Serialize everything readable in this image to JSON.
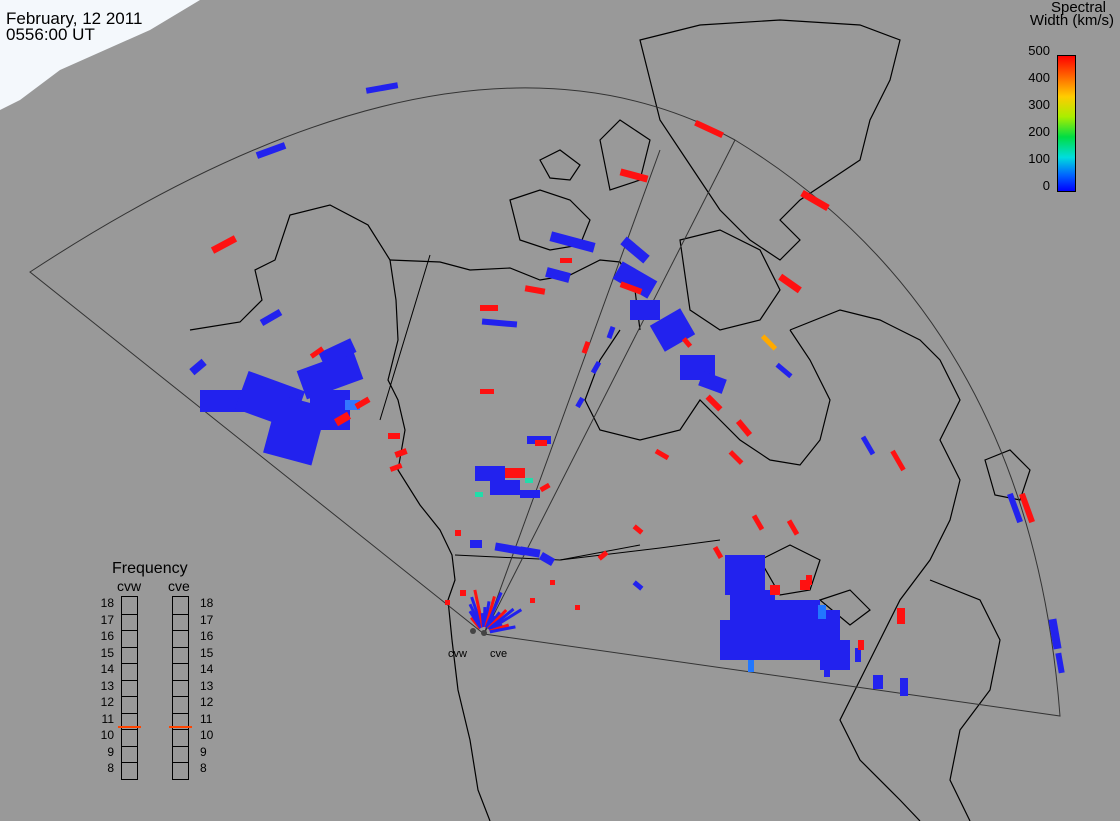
{
  "header": {
    "date": "February, 12 2011",
    "time": "0556:00 UT"
  },
  "colorbar": {
    "title_line1": "Spectral",
    "title_line2": "Width (km/s)",
    "ticks": [
      "500",
      "400",
      "300",
      "200",
      "100",
      "0"
    ],
    "colors": [
      "#ff0000",
      "#ff8800",
      "#ffff00",
      "#00ff00",
      "#00ffff",
      "#0044ff"
    ]
  },
  "frequency": {
    "title": "Frequency",
    "stations": [
      "cvw",
      "cve"
    ],
    "labels": [
      "18",
      "17",
      "16",
      "15",
      "14",
      "13",
      "12",
      "11",
      "10",
      "9",
      "8"
    ],
    "cvw_value": 10.7,
    "cve_value": 10.7,
    "marker_color": "#ff4400"
  },
  "radars": {
    "west": "cvw",
    "east": "cve"
  },
  "colors": {
    "background": "#999999",
    "low_width": "#2222ee",
    "high_width": "#ff1111"
  }
}
